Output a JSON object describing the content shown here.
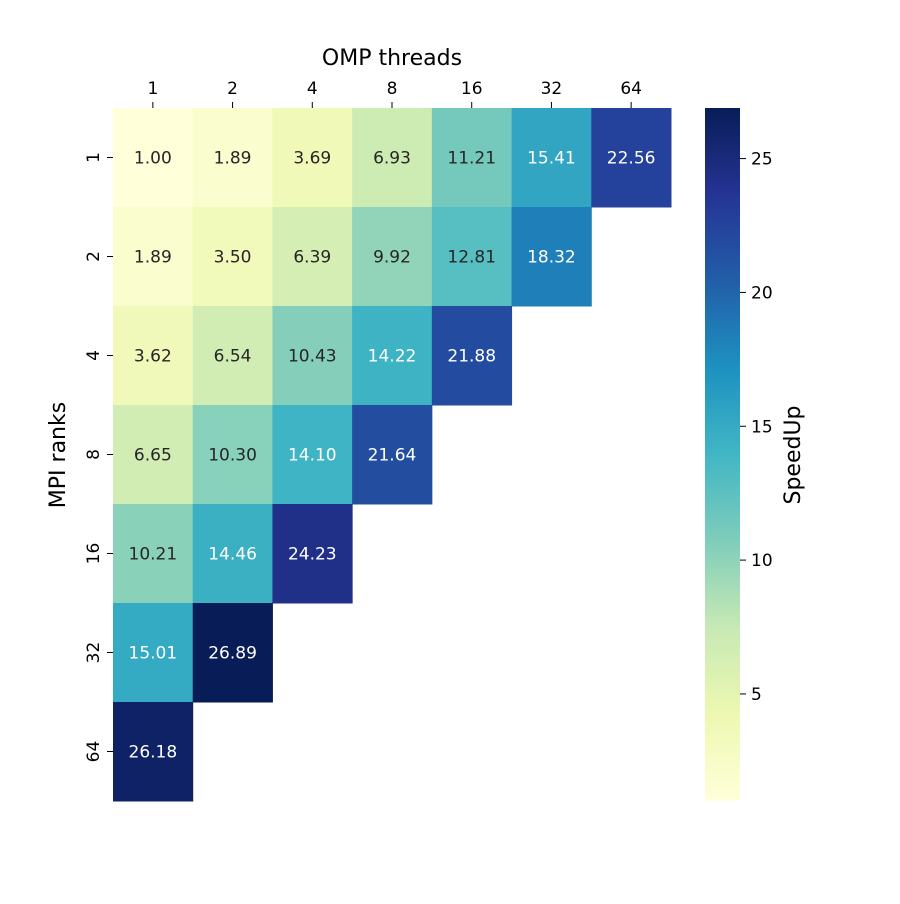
{
  "chart_data": {
    "type": "heatmap",
    "xlabel": "OMP threads",
    "ylabel": "MPI ranks",
    "x_categories": [
      "1",
      "2",
      "4",
      "8",
      "16",
      "32",
      "64"
    ],
    "y_categories": [
      "1",
      "2",
      "4",
      "8",
      "16",
      "32",
      "64"
    ],
    "x_axis_position": "top",
    "values": [
      [
        1.0,
        1.89,
        3.69,
        6.93,
        11.21,
        15.41,
        22.56
      ],
      [
        1.89,
        3.5,
        6.39,
        9.92,
        12.81,
        18.32,
        null
      ],
      [
        3.62,
        6.54,
        10.43,
        14.22,
        21.88,
        null,
        null
      ],
      [
        6.65,
        10.3,
        14.1,
        21.64,
        null,
        null,
        null
      ],
      [
        10.21,
        14.46,
        24.23,
        null,
        null,
        null,
        null
      ],
      [
        15.01,
        26.89,
        null,
        null,
        null,
        null,
        null
      ],
      [
        26.18,
        null,
        null,
        null,
        null,
        null,
        null
      ]
    ],
    "value_format": "0.00",
    "colormap": "YlGnBu",
    "colormap_stops": [
      "#ffffd9",
      "#edf8b1",
      "#c7e9b4",
      "#7fcdbb",
      "#41b6c4",
      "#1d91c0",
      "#225ea8",
      "#253494",
      "#081d58"
    ],
    "vmin": 1.0,
    "vmax": 26.89,
    "colorbar": {
      "label": "SpeedUp",
      "ticks": [
        5,
        10,
        15,
        20,
        25
      ],
      "position": "right"
    },
    "grid": false
  }
}
